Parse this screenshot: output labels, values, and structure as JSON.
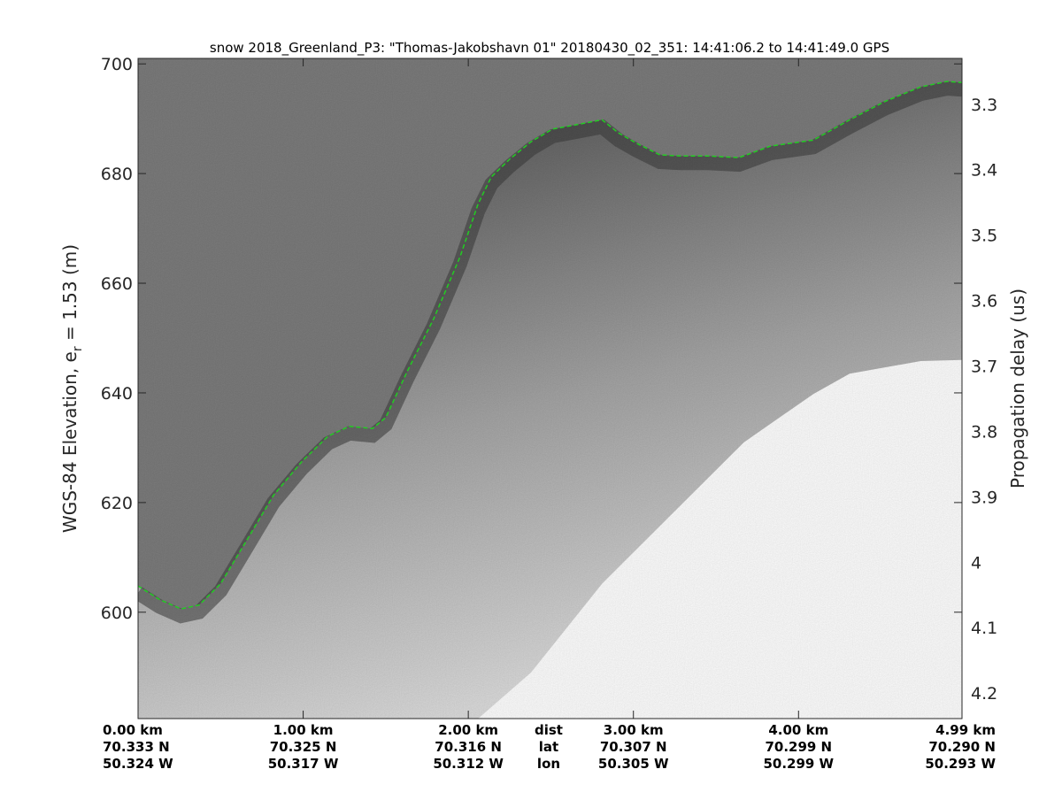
{
  "chart_data": {
    "type": "heatmap",
    "title": "snow 2018_Greenland_P3: \"Thomas-Jakobshavn 01\"  20180430_02_351: 14:41:06.2 to 14:41:49.0 GPS",
    "ylabel_left": {
      "text": "WGS-84 Elevation, e",
      "subscript": "r",
      "suffix": " = 1.53 (m)"
    },
    "ylabel_right": "Propagation delay (us)",
    "ylim_left": [
      580.6,
      701
    ],
    "yticks_left": [
      600,
      620,
      640,
      660,
      680,
      700
    ],
    "ylim_right": [
      4.239,
      3.23
    ],
    "yticks_right": [
      3.3,
      3.4,
      3.5,
      3.6,
      3.7,
      3.8,
      3.9,
      4.0,
      4.1,
      4.2
    ],
    "yticklabels_right": [
      "3.3",
      "3.4",
      "3.5",
      "3.6",
      "3.7",
      "3.8",
      "3.9",
      "4",
      "4.1",
      "4.2"
    ],
    "xlim_km": [
      0,
      4.99
    ],
    "xticks": [
      {
        "km": 0.0,
        "dist": "0.00 km",
        "lat": "70.333 N",
        "lon": "50.324 W"
      },
      {
        "km": 1.0,
        "dist": "1.00 km",
        "lat": "70.325 N",
        "lon": "50.317 W"
      },
      {
        "km": 2.0,
        "dist": "2.00 km",
        "lat": "70.316 N",
        "lon": "50.312 W"
      },
      {
        "km": 3.0,
        "dist": "3.00 km",
        "lat": "70.307 N",
        "lon": "50.305 W"
      },
      {
        "km": 4.0,
        "dist": "4.00 km",
        "lat": "70.299 N",
        "lon": "50.299 W"
      },
      {
        "km": 4.99,
        "dist": "4.99 km",
        "lat": "70.290 N",
        "lon": "50.293 W"
      }
    ],
    "row_labels": {
      "dist": "dist",
      "lat": "lat",
      "lon": "lon"
    },
    "colormap": "gray",
    "surface_line_color": "#22cc22",
    "surface": {
      "km": [
        0.0,
        0.13,
        0.26,
        0.37,
        0.5,
        0.66,
        0.82,
        0.99,
        1.15,
        1.28,
        1.42,
        1.5,
        1.63,
        1.79,
        1.95,
        2.06,
        2.14,
        2.25,
        2.38,
        2.51,
        2.67,
        2.81,
        2.91,
        3.02,
        3.16,
        3.29,
        3.45,
        3.64,
        3.83,
        4.09,
        4.31,
        4.52,
        4.74,
        4.9,
        4.99
      ],
      "elev": [
        604.8,
        602.3,
        600.6,
        601.3,
        605.2,
        613.2,
        621.3,
        627.4,
        632.1,
        633.9,
        633.5,
        635.5,
        643.9,
        653.5,
        664.8,
        674.5,
        679.4,
        682.6,
        685.8,
        688.1,
        689.0,
        689.8,
        687.4,
        685.5,
        683.4,
        683.2,
        683.2,
        682.9,
        685.0,
        686.1,
        689.8,
        693.1,
        695.8,
        696.8,
        696.6
      ]
    },
    "no_data_boundary": {
      "km": [
        2.06,
        2.38,
        2.81,
        3.24,
        3.67,
        4.09,
        4.31,
        4.74,
        4.99
      ],
      "elev": [
        580.6,
        589.0,
        605.2,
        618.1,
        631.0,
        639.8,
        643.5,
        645.8,
        646.0
      ]
    }
  }
}
